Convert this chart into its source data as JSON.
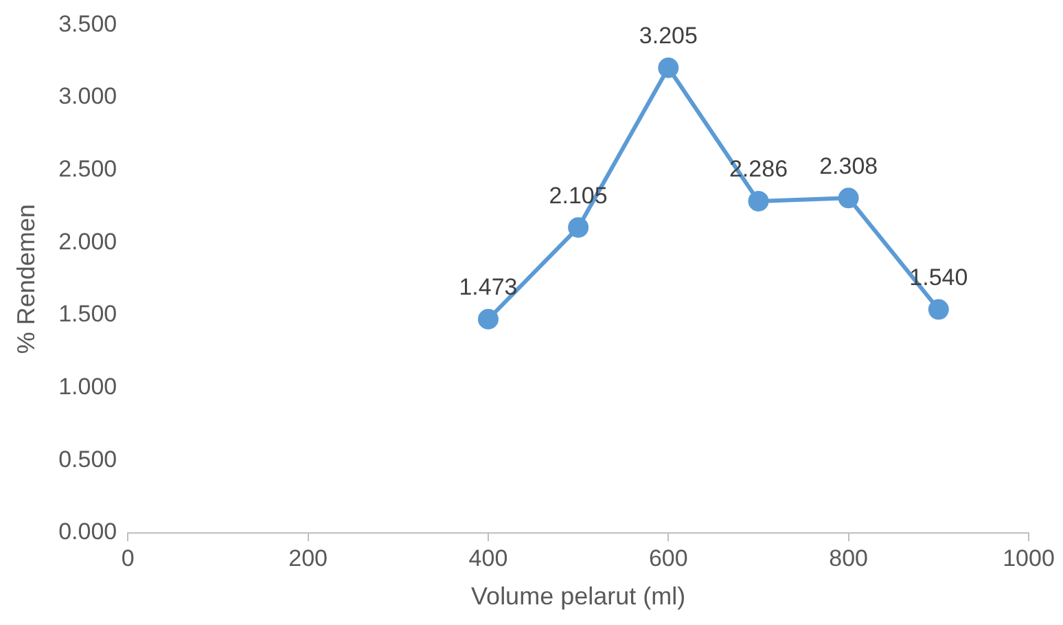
{
  "chart_data": {
    "type": "line",
    "xlabel": "Volume pelarut (ml)",
    "ylabel": "% Rendemen",
    "x": [
      400,
      500,
      600,
      700,
      800,
      900
    ],
    "series": [
      {
        "color": "#5b9bd5",
        "values": [
          1.473,
          2.105,
          3.205,
          2.286,
          2.308,
          1.54
        ],
        "value_labels": [
          "1.473",
          "2.105",
          "3.205",
          "2.286",
          "2.308",
          "1.540"
        ]
      }
    ],
    "xlim": [
      0,
      1000
    ],
    "xticks": [
      0,
      200,
      400,
      600,
      800,
      1000
    ],
    "ylim": [
      0,
      3.5
    ],
    "yticks": [
      {
        "value": 0,
        "label": "0.000"
      },
      {
        "value": 0.5,
        "label": "0.500"
      },
      {
        "value": 1,
        "label": "1.000"
      },
      {
        "value": 1.5,
        "label": "1.500"
      },
      {
        "value": 2,
        "label": "2.000"
      },
      {
        "value": 2.5,
        "label": "2.500"
      },
      {
        "value": 3,
        "label": "3.000"
      },
      {
        "value": 3.5,
        "label": "3.500"
      }
    ],
    "grid": false,
    "legend": false,
    "marker": "circle",
    "line_style": "solid"
  }
}
